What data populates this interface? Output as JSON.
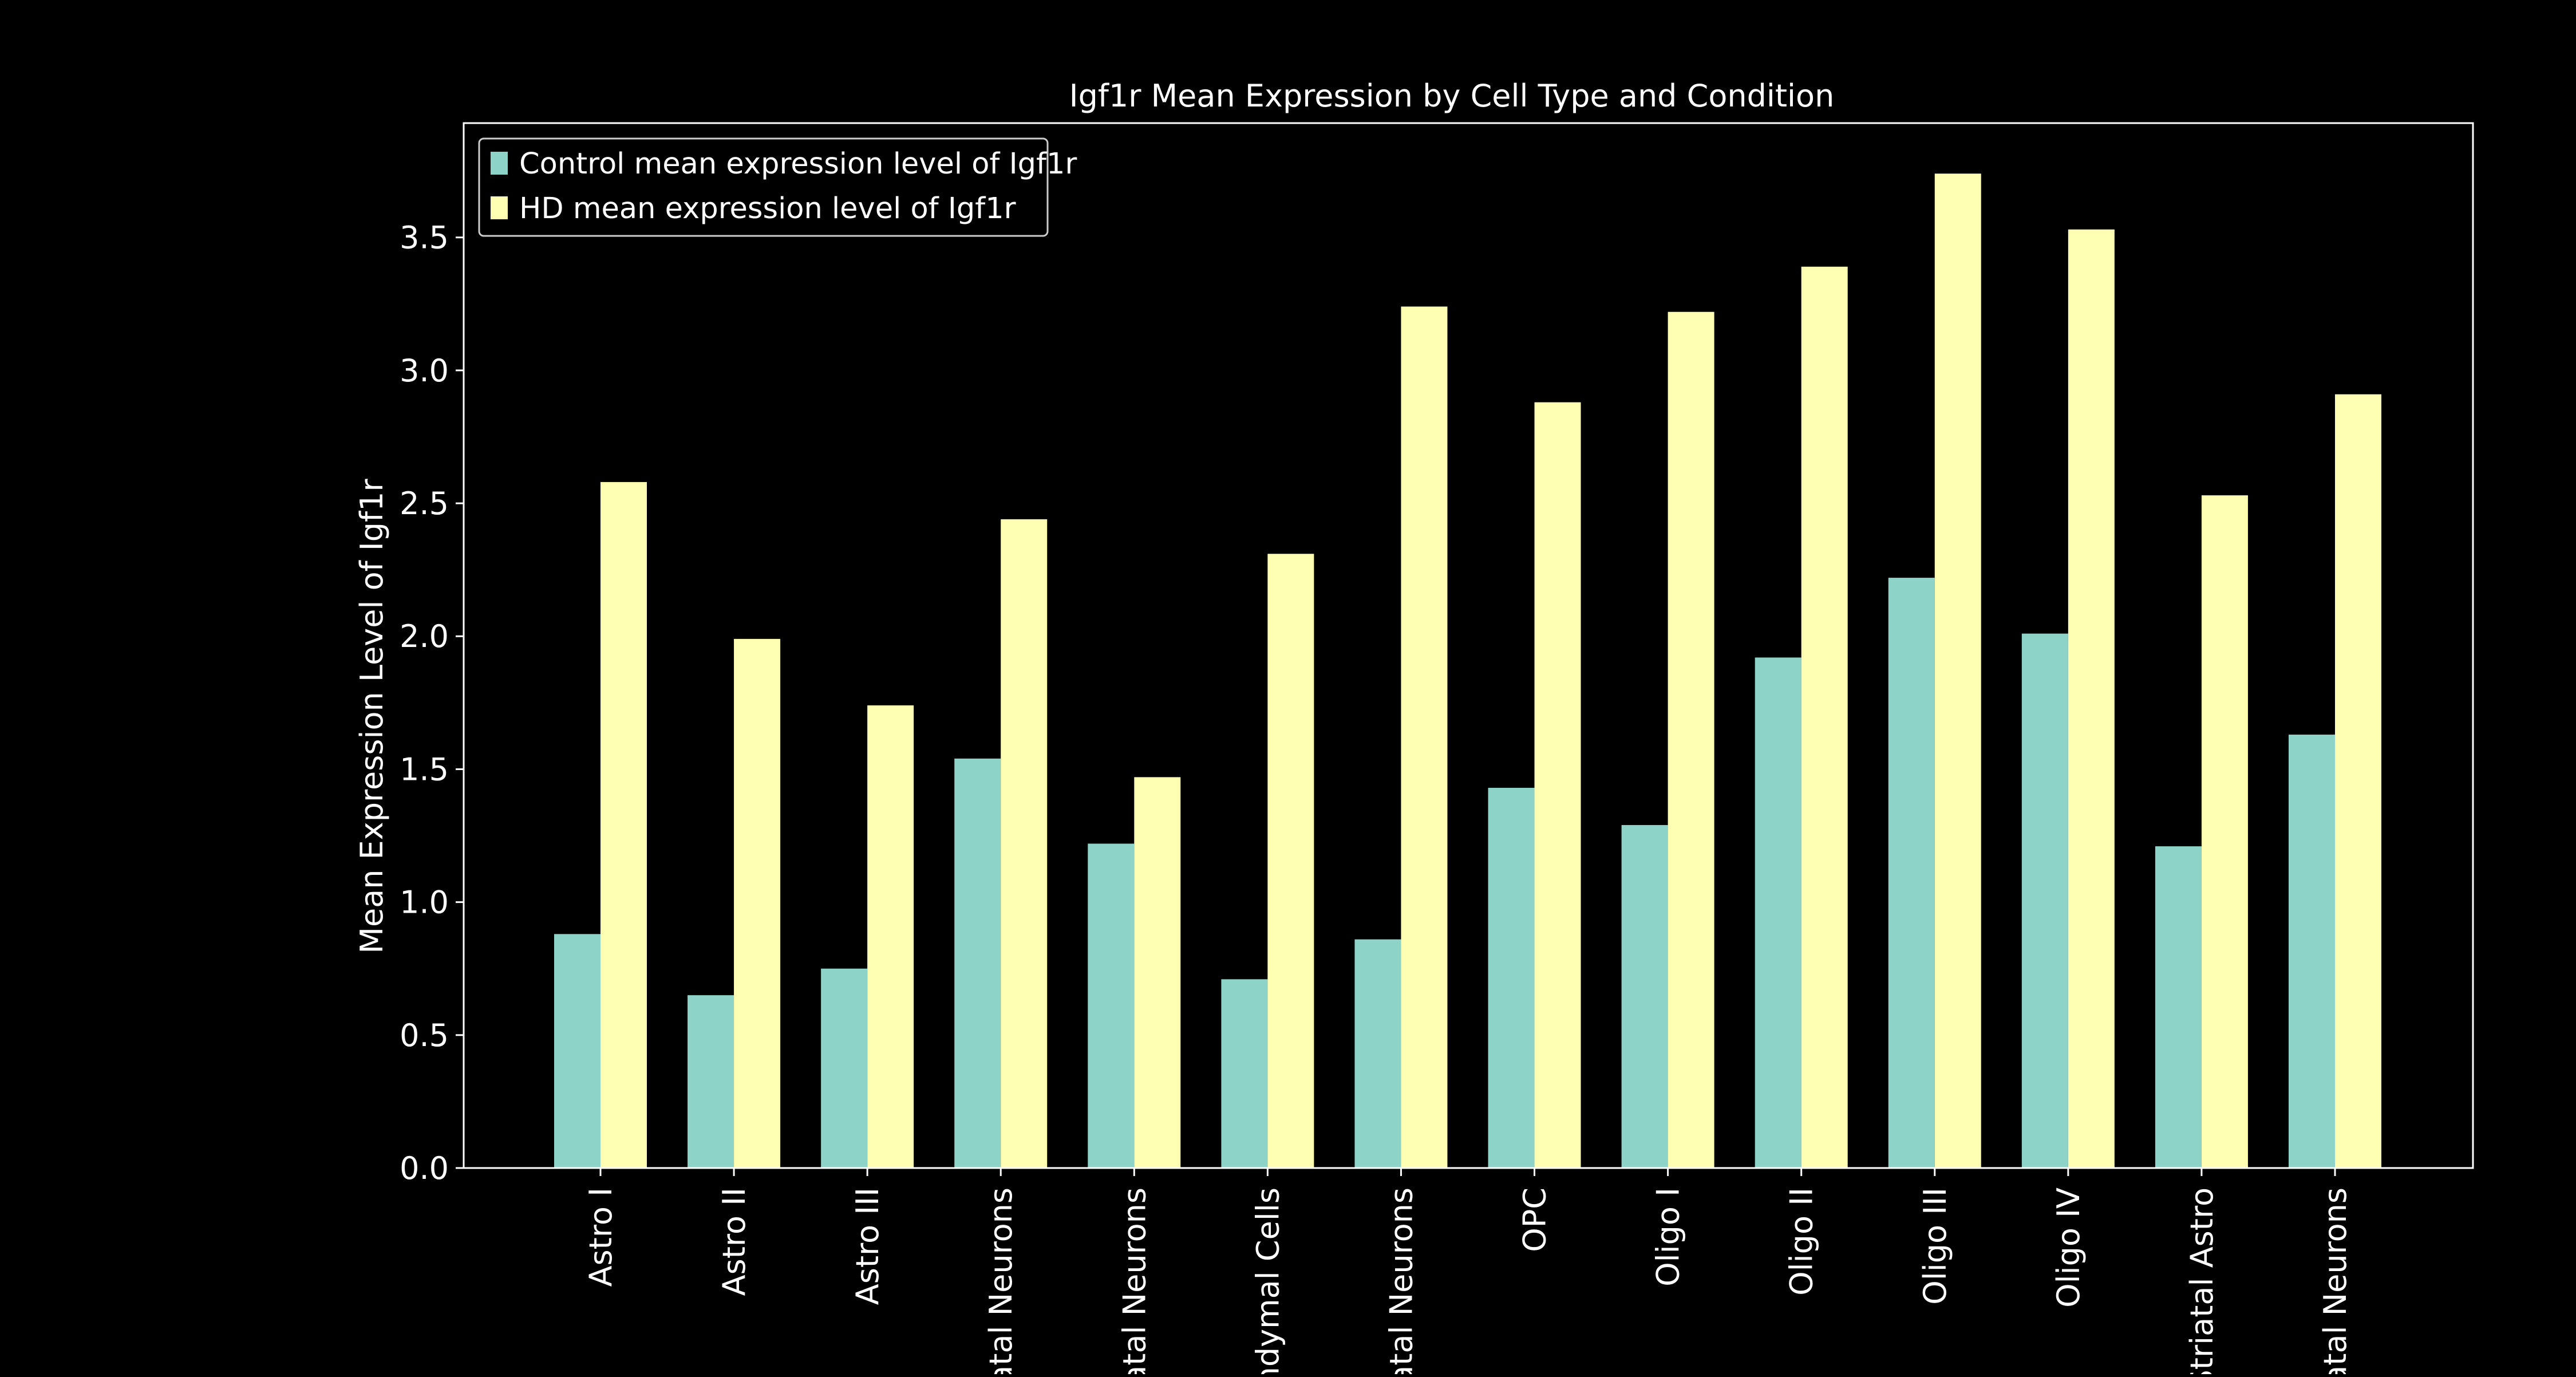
{
  "chart_data": {
    "type": "bar",
    "title": "Igf1r Mean Expression by Cell Type and Condition",
    "xlabel": "",
    "ylabel": "Mean Expression Level of Igf1r",
    "ylim": [
      0,
      3.93
    ],
    "yticks": [
      0.0,
      0.5,
      1.0,
      1.5,
      2.0,
      2.5,
      3.0,
      3.5
    ],
    "ytick_labels": [
      "0.0",
      "0.5",
      "1.0",
      "1.5",
      "2.0",
      "2.5",
      "3.0",
      "3.5"
    ],
    "grid": false,
    "legend_position": "upper-left",
    "categories": [
      "Astro I",
      "Astro II",
      "Astro III",
      "atal Neurons",
      "atal Neurons",
      "ndymal Cells",
      "atal Neurons",
      "OPC",
      "Oligo I",
      "Oligo II",
      "Oligo III",
      "Oligo IV",
      "Striatal Astro",
      "atal Neurons"
    ],
    "series": [
      {
        "name": "Control mean expression level of Igf1r",
        "color": "#8dd3c7",
        "values": [
          0.88,
          0.65,
          0.75,
          1.54,
          1.22,
          0.71,
          0.86,
          1.43,
          1.29,
          1.92,
          2.22,
          2.01,
          1.21,
          1.63
        ]
      },
      {
        "name": "HD mean expression level of Igf1r",
        "color": "#ffffb3",
        "values": [
          2.58,
          1.99,
          1.74,
          2.44,
          1.47,
          2.31,
          3.24,
          2.88,
          3.22,
          3.39,
          3.74,
          3.53,
          2.53,
          2.91
        ]
      }
    ]
  }
}
